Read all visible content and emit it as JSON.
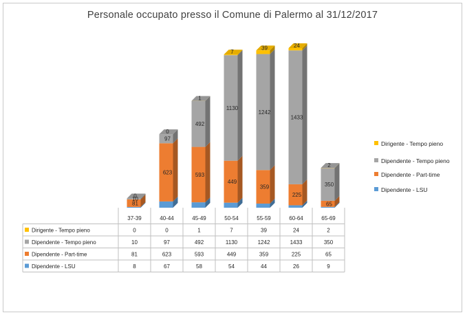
{
  "chart_data": {
    "type": "bar",
    "stacked": true,
    "three_d": true,
    "title": "Personale occupato presso il Comune di Palermo al 31/12/2017",
    "categories": [
      "37-39",
      "40-44",
      "45-49",
      "50-54",
      "55-59",
      "60-64",
      "65-69"
    ],
    "series": [
      {
        "name": "Dirigente - Tempo pieno",
        "color": "#ffc000",
        "values": [
          0,
          0,
          1,
          7,
          39,
          24,
          2
        ]
      },
      {
        "name": "Dipendente - Tempo pieno",
        "color": "#a5a5a5",
        "values": [
          10,
          97,
          492,
          1130,
          1242,
          1433,
          350
        ]
      },
      {
        "name": "Dipendente - Part-time",
        "color": "#ed7d31",
        "values": [
          81,
          623,
          593,
          449,
          359,
          225,
          65
        ]
      },
      {
        "name": "Dipendente - LSU",
        "color": "#5b9bd5",
        "values": [
          8,
          67,
          58,
          54,
          44,
          26,
          9
        ]
      }
    ],
    "stack_order": [
      "Dipendente - LSU",
      "Dipendente - Part-time",
      "Dipendente - Tempo pieno",
      "Dirigente - Tempo pieno"
    ],
    "legend_position": "right",
    "data_table": true,
    "grid": false
  }
}
